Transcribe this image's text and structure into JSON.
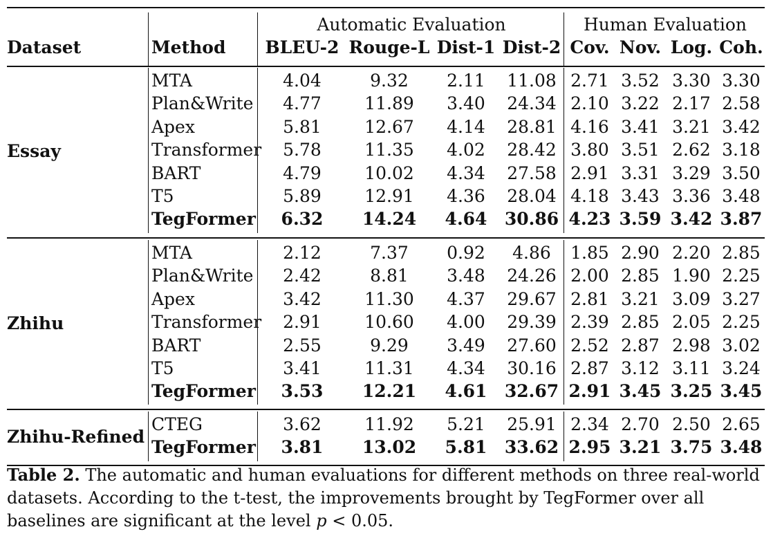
{
  "table": {
    "header": {
      "dataset": "Dataset",
      "method": "Method",
      "group_auto": "Automatic Evaluation",
      "group_human": "Human Evaluation",
      "metrics": [
        "BLEU-2",
        "Rouge-L",
        "Dist-1",
        "Dist-2",
        "Cov.",
        "Nov.",
        "Log.",
        "Coh."
      ]
    },
    "groups": [
      {
        "dataset": "Essay",
        "rows": [
          {
            "method": "MTA",
            "values": [
              "4.04",
              "9.32",
              "2.11",
              "11.08",
              "2.71",
              "3.52",
              "3.30",
              "3.30"
            ],
            "bold": false
          },
          {
            "method": "Plan&Write",
            "values": [
              "4.77",
              "11.89",
              "3.40",
              "24.34",
              "2.10",
              "3.22",
              "2.17",
              "2.58"
            ],
            "bold": false
          },
          {
            "method": "Apex",
            "values": [
              "5.81",
              "12.67",
              "4.14",
              "28.81",
              "4.16",
              "3.41",
              "3.21",
              "3.42"
            ],
            "bold": false
          },
          {
            "method": "Transformer",
            "values": [
              "5.78",
              "11.35",
              "4.02",
              "28.42",
              "3.80",
              "3.51",
              "2.62",
              "3.18"
            ],
            "bold": false
          },
          {
            "method": "BART",
            "values": [
              "4.79",
              "10.02",
              "4.34",
              "27.58",
              "2.91",
              "3.31",
              "3.29",
              "3.50"
            ],
            "bold": false
          },
          {
            "method": "T5",
            "values": [
              "5.89",
              "12.91",
              "4.36",
              "28.04",
              "4.18",
              "3.43",
              "3.36",
              "3.48"
            ],
            "bold": false
          },
          {
            "method": "TegFormer",
            "values": [
              "6.32",
              "14.24",
              "4.64",
              "30.86",
              "4.23",
              "3.59",
              "3.42",
              "3.87"
            ],
            "bold": true
          }
        ]
      },
      {
        "dataset": "Zhihu",
        "rows": [
          {
            "method": "MTA",
            "values": [
              "2.12",
              "7.37",
              "0.92",
              "4.86",
              "1.85",
              "2.90",
              "2.20",
              "2.85"
            ],
            "bold": false
          },
          {
            "method": "Plan&Write",
            "values": [
              "2.42",
              "8.81",
              "3.48",
              "24.26",
              "2.00",
              "2.85",
              "1.90",
              "2.25"
            ],
            "bold": false
          },
          {
            "method": "Apex",
            "values": [
              "3.42",
              "11.30",
              "4.37",
              "29.67",
              "2.81",
              "3.21",
              "3.09",
              "3.27"
            ],
            "bold": false
          },
          {
            "method": "Transformer",
            "values": [
              "2.91",
              "10.60",
              "4.00",
              "29.39",
              "2.39",
              "2.85",
              "2.05",
              "2.25"
            ],
            "bold": false
          },
          {
            "method": "BART",
            "values": [
              "2.55",
              "9.29",
              "3.49",
              "27.60",
              "2.52",
              "2.87",
              "2.98",
              "3.02"
            ],
            "bold": false
          },
          {
            "method": "T5",
            "values": [
              "3.41",
              "11.31",
              "4.34",
              "30.16",
              "2.87",
              "3.12",
              "3.11",
              "3.24"
            ],
            "bold": false
          },
          {
            "method": "TegFormer",
            "values": [
              "3.53",
              "12.21",
              "4.61",
              "32.67",
              "2.91",
              "3.45",
              "3.25",
              "3.45"
            ],
            "bold": true
          }
        ]
      },
      {
        "dataset": "Zhihu-Refined",
        "rows": [
          {
            "method": "CTEG",
            "values": [
              "3.62",
              "11.92",
              "5.21",
              "25.91",
              "2.34",
              "2.70",
              "2.50",
              "2.65"
            ],
            "bold": false
          },
          {
            "method": "TegFormer",
            "values": [
              "3.81",
              "13.02",
              "5.81",
              "33.62",
              "2.95",
              "3.21",
              "3.75",
              "3.48"
            ],
            "bold": true
          }
        ]
      }
    ]
  },
  "caption": {
    "label": "Table 2.",
    "text_before_math": "The automatic and human evaluations for different methods on three real-world datasets. According to the t-test, the improvements brought by TegFormer over all baselines are significant at the level ",
    "math_var": "p",
    "math_rest": " < 0.05."
  }
}
